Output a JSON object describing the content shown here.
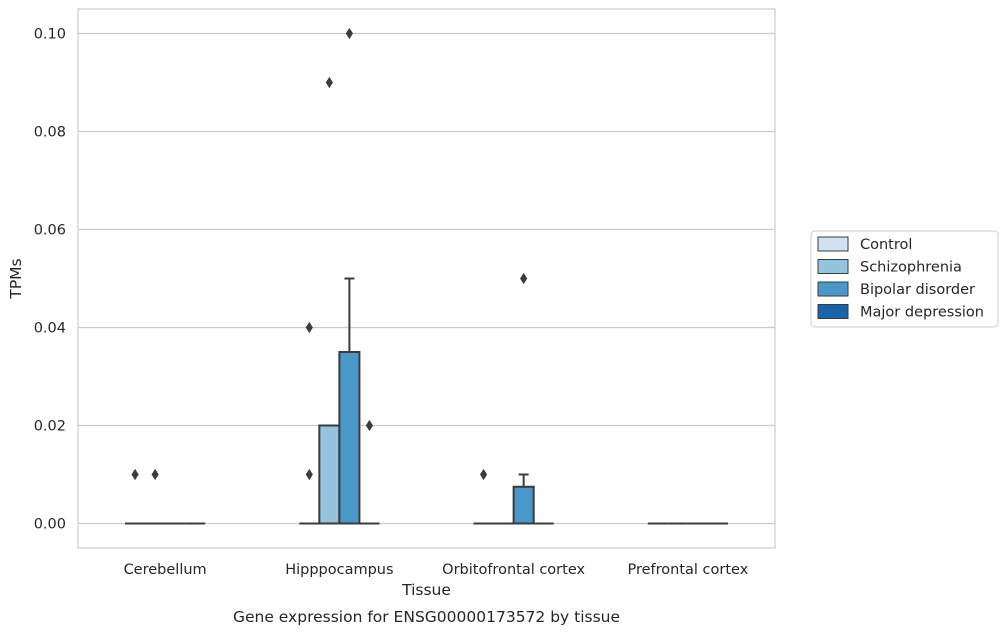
{
  "chart_data": {
    "type": "box",
    "caption": "Gene expression for ENSG00000173572 by tissue",
    "xlabel": "Tissue",
    "ylabel": "TPMs",
    "ylim": [
      -0.005,
      0.105
    ],
    "yticks": [
      0.0,
      0.02,
      0.04,
      0.06,
      0.08,
      0.1
    ],
    "ytick_labels": [
      "0.00",
      "0.02",
      "0.04",
      "0.06",
      "0.08",
      "0.10"
    ],
    "categories": [
      "Cerebellum",
      "Hipppocampus",
      "Orbitofrontal cortex",
      "Prefrontal cortex"
    ],
    "grid": "horizontal",
    "legend_position": "right",
    "series": [
      {
        "name": "Control",
        "color": "#d0e1f2",
        "boxes": [
          {
            "q1": 0.0,
            "median": 0.0,
            "q3": 0.0,
            "whisker_low": 0.0,
            "whisker_high": 0.0,
            "outliers": [
              0.01
            ]
          },
          {
            "q1": 0.0,
            "median": 0.0,
            "q3": 0.0,
            "whisker_low": 0.0,
            "whisker_high": 0.0,
            "outliers": [
              0.01,
              0.04
            ]
          },
          {
            "q1": 0.0,
            "median": 0.0,
            "q3": 0.0,
            "whisker_low": 0.0,
            "whisker_high": 0.0,
            "outliers": [
              0.01
            ]
          },
          {
            "q1": 0.0,
            "median": 0.0,
            "q3": 0.0,
            "whisker_low": 0.0,
            "whisker_high": 0.0,
            "outliers": []
          }
        ]
      },
      {
        "name": "Schizophrenia",
        "color": "#94c4df",
        "boxes": [
          {
            "q1": 0.0,
            "median": 0.0,
            "q3": 0.0,
            "whisker_low": 0.0,
            "whisker_high": 0.0,
            "outliers": [
              0.01
            ]
          },
          {
            "q1": 0.0,
            "median": 0.0,
            "q3": 0.02,
            "whisker_low": 0.0,
            "whisker_high": 0.02,
            "outliers": [
              0.09
            ]
          },
          {
            "q1": 0.0,
            "median": 0.0,
            "q3": 0.0,
            "whisker_low": 0.0,
            "whisker_high": 0.0,
            "outliers": []
          },
          {
            "q1": 0.0,
            "median": 0.0,
            "q3": 0.0,
            "whisker_low": 0.0,
            "whisker_high": 0.0,
            "outliers": []
          }
        ]
      },
      {
        "name": "Bipolar disorder",
        "color": "#4a98c9",
        "boxes": [
          {
            "q1": 0.0,
            "median": 0.0,
            "q3": 0.0,
            "whisker_low": 0.0,
            "whisker_high": 0.0,
            "outliers": []
          },
          {
            "q1": 0.0,
            "median": 0.0,
            "q3": 0.035,
            "whisker_low": 0.0,
            "whisker_high": 0.05,
            "outliers": [
              0.1
            ]
          },
          {
            "q1": 0.0,
            "median": 0.0,
            "q3": 0.0075,
            "whisker_low": 0.0,
            "whisker_high": 0.01,
            "outliers": [
              0.05
            ]
          },
          {
            "q1": 0.0,
            "median": 0.0,
            "q3": 0.0,
            "whisker_low": 0.0,
            "whisker_high": 0.0,
            "outliers": []
          }
        ]
      },
      {
        "name": "Major depression",
        "color": "#1764ab",
        "boxes": [
          {
            "q1": 0.0,
            "median": 0.0,
            "q3": 0.0,
            "whisker_low": 0.0,
            "whisker_high": 0.0,
            "outliers": []
          },
          {
            "q1": 0.0,
            "median": 0.0,
            "q3": 0.0,
            "whisker_low": 0.0,
            "whisker_high": 0.0,
            "outliers": [
              0.02
            ]
          },
          {
            "q1": 0.0,
            "median": 0.0,
            "q3": 0.0,
            "whisker_low": 0.0,
            "whisker_high": 0.0,
            "outliers": []
          },
          {
            "q1": 0.0,
            "median": 0.0,
            "q3": 0.0,
            "whisker_low": 0.0,
            "whisker_high": 0.0,
            "outliers": []
          }
        ]
      }
    ]
  }
}
